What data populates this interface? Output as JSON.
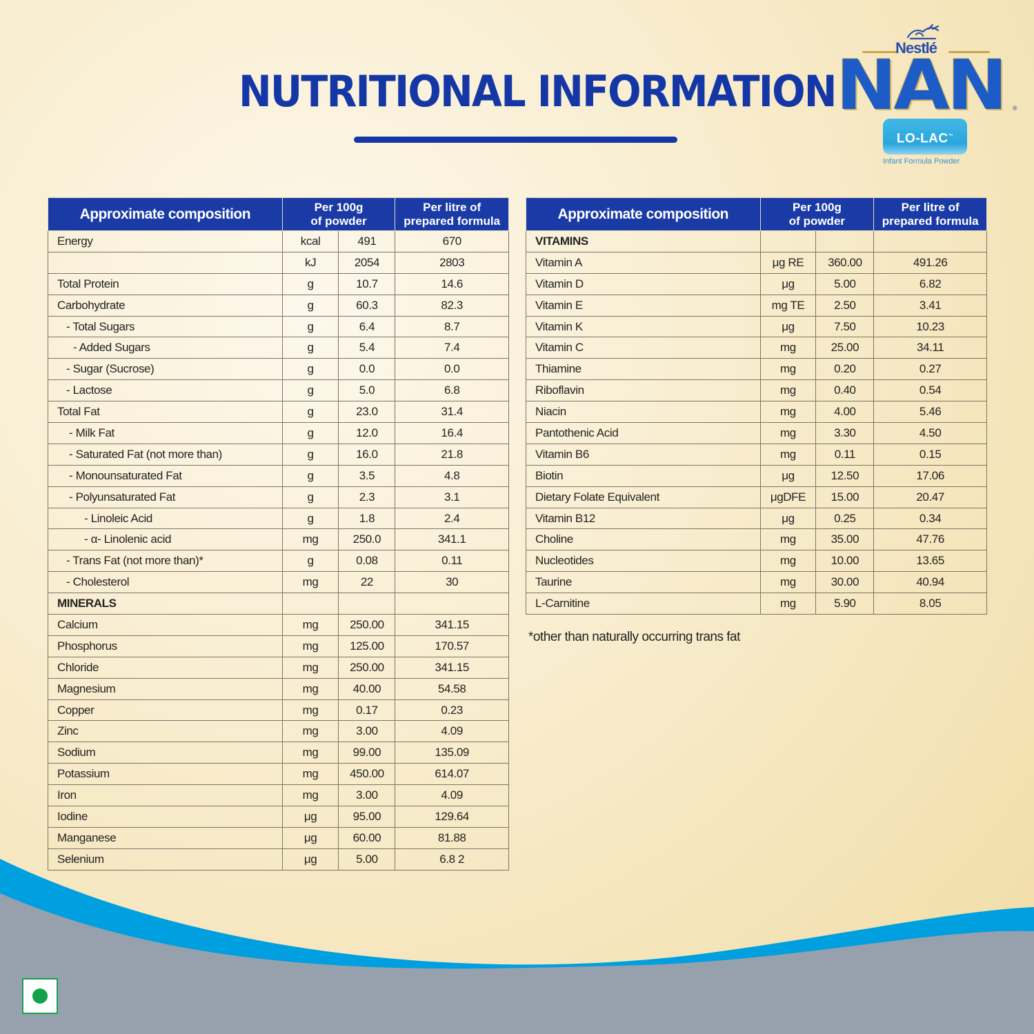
{
  "header": {
    "title": "NUTRITIONAL INFORMATION"
  },
  "logo": {
    "brand": "Nestlé",
    "product": "NAN",
    "registered": "®",
    "variant": "LO-LAC",
    "variant_tm": "™",
    "subtitle": "Infant Formula Powder"
  },
  "colors": {
    "title_blue": "#1537a6",
    "header_blue": "#1a3aa6",
    "wave_blue": "#009fe0",
    "wave_grey": "#97a1ad",
    "veg_green": "#12a24a"
  },
  "table_headers": {
    "composition": "Approximate composition",
    "per100g": "Per 100g of powder",
    "per100g_l1": "Per 100g",
    "per100g_l2": "of powder",
    "perlitre_l1": "Per litre of",
    "perlitre_l2": "prepared formula"
  },
  "left_table": {
    "rows": [
      {
        "name": "Energy",
        "unit": "kcal",
        "per100g": "491",
        "perlitre": "670"
      },
      {
        "name": "",
        "unit": "kJ",
        "per100g": "2054",
        "perlitre": "2803"
      },
      {
        "name": "Total Protein",
        "unit": "g",
        "per100g": "10.7",
        "perlitre": "14.6"
      },
      {
        "name": "Carbohydrate",
        "unit": "g",
        "per100g": "60.3",
        "perlitre": "82.3"
      },
      {
        "name": "- Total Sugars",
        "unit": "g",
        "per100g": "6.4",
        "perlitre": "8.7"
      },
      {
        "name": "- Added Sugars",
        "unit": "g",
        "per100g": "5.4",
        "perlitre": "7.4"
      },
      {
        "name": "- Sugar (Sucrose)",
        "unit": "g",
        "per100g": "0.0",
        "perlitre": "0.0"
      },
      {
        "name": "- Lactose",
        "unit": "g",
        "per100g": "5.0",
        "perlitre": "6.8"
      },
      {
        "name": "Total Fat",
        "unit": "g",
        "per100g": "23.0",
        "perlitre": "31.4"
      },
      {
        "name": "- Milk Fat",
        "unit": "g",
        "per100g": "12.0",
        "perlitre": "16.4"
      },
      {
        "name": "- Saturated Fat (not more than)",
        "unit": "g",
        "per100g": "16.0",
        "perlitre": "21.8"
      },
      {
        "name": "- Monounsaturated Fat",
        "unit": "g",
        "per100g": "3.5",
        "perlitre": "4.8"
      },
      {
        "name": "- Polyunsaturated Fat",
        "unit": "g",
        "per100g": "2.3",
        "perlitre": "3.1"
      },
      {
        "name": "- Linoleic Acid",
        "unit": "g",
        "per100g": "1.8",
        "perlitre": "2.4"
      },
      {
        "name": "- α- Linolenic acid",
        "unit": "mg",
        "per100g": "250.0",
        "perlitre": "341.1"
      },
      {
        "name": "- Trans Fat (not more than)*",
        "unit": "g",
        "per100g": "0.08",
        "perlitre": "0.11"
      },
      {
        "name": "- Cholesterol",
        "unit": "mg",
        "per100g": "22",
        "perlitre": "30"
      },
      {
        "name": "MINERALS",
        "unit": "",
        "per100g": "",
        "perlitre": ""
      },
      {
        "name": "Calcium",
        "unit": "mg",
        "per100g": "250.00",
        "perlitre": "341.15"
      },
      {
        "name": "Phosphorus",
        "unit": "mg",
        "per100g": "125.00",
        "perlitre": "170.57"
      },
      {
        "name": "Chloride",
        "unit": "mg",
        "per100g": "250.00",
        "perlitre": "341.15"
      },
      {
        "name": "Magnesium",
        "unit": "mg",
        "per100g": "40.00",
        "perlitre": "54.58"
      },
      {
        "name": "Copper",
        "unit": "mg",
        "per100g": "0.17",
        "perlitre": "0.23"
      },
      {
        "name": "Zinc",
        "unit": "mg",
        "per100g": "3.00",
        "perlitre": "4.09"
      },
      {
        "name": "Sodium",
        "unit": "mg",
        "per100g": "99.00",
        "perlitre": "135.09"
      },
      {
        "name": "Potassium",
        "unit": "mg",
        "per100g": "450.00",
        "perlitre": "614.07"
      },
      {
        "name": "Iron",
        "unit": "mg",
        "per100g": "3.00",
        "perlitre": "4.09"
      },
      {
        "name": "Iodine",
        "unit": "μg",
        "per100g": "95.00",
        "perlitre": "129.64"
      },
      {
        "name": "Manganese",
        "unit": "μg",
        "per100g": "60.00",
        "perlitre": "81.88"
      },
      {
        "name": "Selenium",
        "unit": "μg",
        "per100g": "5.00",
        "perlitre": "6.8 2"
      }
    ]
  },
  "right_table": {
    "rows": [
      {
        "name": "VITAMINS",
        "unit": "",
        "per100g": "",
        "perlitre": ""
      },
      {
        "name": "Vitamin A",
        "unit": "μg RE",
        "per100g": "360.00",
        "perlitre": "491.26"
      },
      {
        "name": "Vitamin D",
        "unit": "μg",
        "per100g": "5.00",
        "perlitre": "6.82"
      },
      {
        "name": "Vitamin E",
        "unit": "mg TE",
        "per100g": "2.50",
        "perlitre": "3.41"
      },
      {
        "name": "Vitamin K",
        "unit": "μg",
        "per100g": "7.50",
        "perlitre": "10.23"
      },
      {
        "name": "Vitamin C",
        "unit": "mg",
        "per100g": "25.00",
        "perlitre": "34.11"
      },
      {
        "name": "Thiamine",
        "unit": "mg",
        "per100g": "0.20",
        "perlitre": "0.27"
      },
      {
        "name": "Riboflavin",
        "unit": "mg",
        "per100g": "0.40",
        "perlitre": "0.54"
      },
      {
        "name": "Niacin",
        "unit": "mg",
        "per100g": "4.00",
        "perlitre": "5.46"
      },
      {
        "name": "Pantothenic Acid",
        "unit": "mg",
        "per100g": "3.30",
        "perlitre": "4.50"
      },
      {
        "name": "Vitamin B6",
        "unit": "mg",
        "per100g": "0.11",
        "perlitre": "0.15"
      },
      {
        "name": "Biotin",
        "unit": "μg",
        "per100g": "12.50",
        "perlitre": "17.06"
      },
      {
        "name": "Dietary Folate Equivalent",
        "unit": "μgDFE",
        "per100g": "15.00",
        "perlitre": "20.47"
      },
      {
        "name": "Vitamin B12",
        "unit": "μg",
        "per100g": "0.25",
        "perlitre": "0.34"
      },
      {
        "name": "Choline",
        "unit": "mg",
        "per100g": "35.00",
        "perlitre": "47.76"
      },
      {
        "name": "Nucleotides",
        "unit": "mg",
        "per100g": "10.00",
        "perlitre": "13.65"
      },
      {
        "name": "Taurine",
        "unit": "mg",
        "per100g": "30.00",
        "perlitre": "40.94"
      },
      {
        "name": "L-Carnitine",
        "unit": "mg",
        "per100g": "5.90",
        "perlitre": "8.05"
      }
    ]
  },
  "footnote": "*other than naturally occurring trans fat",
  "badges": {
    "veg_mark": "vegetarian-mark"
  }
}
